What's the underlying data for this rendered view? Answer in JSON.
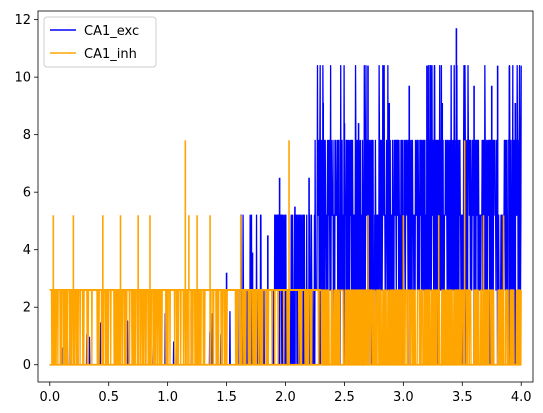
{
  "chart_data": {
    "type": "line",
    "title": "",
    "xlabel": "",
    "ylabel": "",
    "xlim": [
      -0.1,
      4.1
    ],
    "ylim": [
      -0.6,
      12.3
    ],
    "xticks": [
      0.0,
      0.5,
      1.0,
      1.5,
      2.0,
      2.5,
      3.0,
      3.5,
      4.0
    ],
    "xtick_labels": [
      "0.0",
      "0.5",
      "1.0",
      "1.5",
      "2.0",
      "2.5",
      "3.0",
      "3.5",
      "4.0"
    ],
    "yticks": [
      0,
      2,
      4,
      6,
      8,
      10,
      12
    ],
    "ytick_labels": [
      "0",
      "2",
      "4",
      "6",
      "8",
      "10",
      "12"
    ],
    "grid": false,
    "legend_position": "top-left",
    "x_range": [
      0.0,
      4.0
    ],
    "series": [
      {
        "name": "CA1_exc",
        "color": "#0000ff",
        "description": "sparse spikes before ~1.7, dense activity rising to peaks near 8-11.7 after 2.2",
        "peaks": [
          [
            0.1,
            0.6
          ],
          [
            1.2,
            2.0
          ],
          [
            1.5,
            3.2
          ],
          [
            1.72,
            3.9
          ],
          [
            1.85,
            4.5
          ],
          [
            1.95,
            6.5
          ],
          [
            2.08,
            5.5
          ],
          [
            2.2,
            6.5
          ],
          [
            2.32,
            9.1
          ],
          [
            2.5,
            8.4
          ],
          [
            2.62,
            8.4
          ],
          [
            2.7,
            10.4
          ],
          [
            2.88,
            9.1
          ],
          [
            3.05,
            9.7
          ],
          [
            3.2,
            10.4
          ],
          [
            3.33,
            9.1
          ],
          [
            3.45,
            11.7
          ],
          [
            3.6,
            9.7
          ],
          [
            3.75,
            9.7
          ],
          [
            3.8,
            10.4
          ],
          [
            3.9,
            10.4
          ],
          [
            3.95,
            9.1
          ]
        ]
      },
      {
        "name": "CA1_inh",
        "color": "#ffa500",
        "description": "baseline 0 with dense band at ~2.6 and sparse spikes to 5.2 and 7.8",
        "peaks": [
          [
            0.03,
            5.2
          ],
          [
            0.2,
            5.2
          ],
          [
            0.45,
            5.2
          ],
          [
            0.6,
            5.2
          ],
          [
            0.75,
            5.2
          ],
          [
            0.85,
            5.2
          ],
          [
            1.15,
            7.8
          ],
          [
            1.18,
            5.2
          ],
          [
            1.25,
            5.2
          ],
          [
            1.36,
            5.2
          ],
          [
            1.62,
            5.2
          ],
          [
            2.03,
            7.8
          ],
          [
            2.7,
            5.2
          ],
          [
            3.0,
            5.2
          ],
          [
            3.3,
            5.2
          ],
          [
            3.52,
            7.8
          ],
          [
            3.68,
            5.2
          ],
          [
            3.85,
            5.2
          ]
        ]
      }
    ]
  }
}
